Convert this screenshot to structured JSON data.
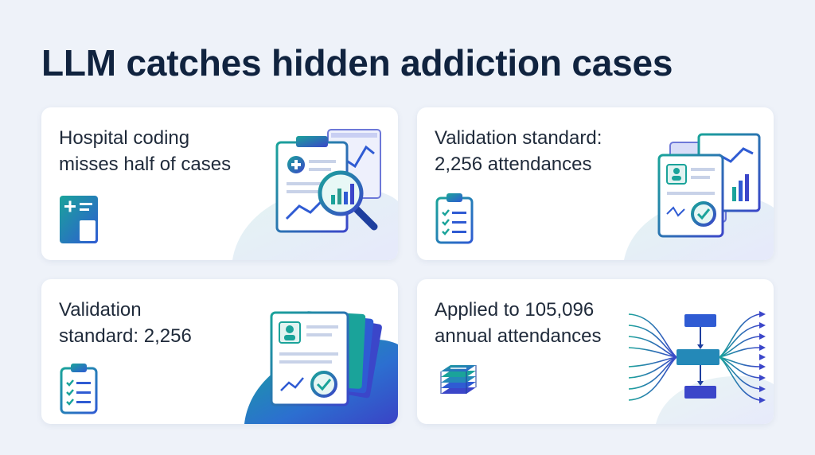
{
  "title": "LLM catches hidden addiction cases",
  "cards": [
    {
      "text": "Hospital coding\nmisses half of cases",
      "icon": "medical-chart-icon",
      "illustration": "document-magnifier-illustration"
    },
    {
      "text": "Validation standard:\n2,256 attendances",
      "icon": "clipboard-checklist-icon",
      "illustration": "records-stack-illustration"
    },
    {
      "text": "Validation\nstandard: 2,256",
      "icon": "clipboard-checklist-icon",
      "illustration": "records-fan-illustration"
    },
    {
      "text": "Applied to 105,096\nannual attendances",
      "icon": "stacked-records-icon",
      "illustration": "flow-network-illustration"
    }
  ],
  "colors": {
    "background": "#eef2f9",
    "title": "#10233f",
    "teal": "#1aa39a",
    "blue": "#2f5bd3",
    "indigo": "#3b46c9"
  }
}
